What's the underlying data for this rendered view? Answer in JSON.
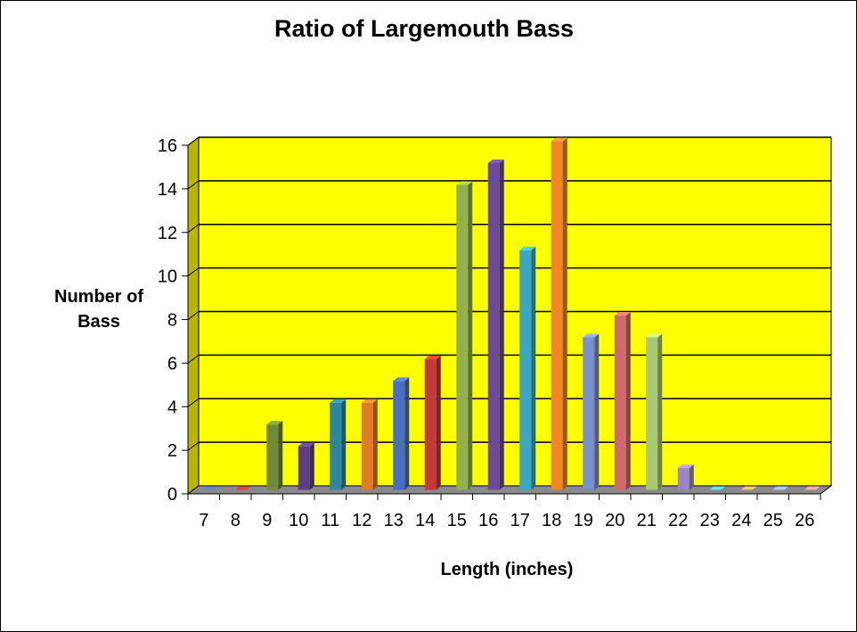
{
  "chart_data": {
    "type": "bar",
    "title": "Ratio of Largemouth Bass",
    "xlabel": "Length (inches)",
    "ylabel": "Number of Bass",
    "categories": [
      "7",
      "8",
      "9",
      "10",
      "11",
      "12",
      "13",
      "14",
      "15",
      "16",
      "17",
      "18",
      "19",
      "20",
      "21",
      "22",
      "23",
      "24",
      "25",
      "26"
    ],
    "values": [
      0,
      0,
      3,
      2,
      4,
      4,
      5,
      6,
      14,
      15,
      11,
      16,
      7,
      8,
      7,
      1,
      0,
      0,
      0,
      0
    ],
    "ylim": [
      0,
      16
    ],
    "yticks": [
      "0",
      "2",
      "4",
      "6",
      "8",
      "10",
      "12",
      "14",
      "16"
    ],
    "grid": true,
    "three_d": true,
    "legend": "none",
    "colors": {
      "plot_background": "#ffff00",
      "side_wall": "#b8b400",
      "floor": "#8a8a8a",
      "bars": [
        "#4a6fa5",
        "#b03a36",
        "#6f8a3a",
        "#5a3f87",
        "#2f86a0",
        "#e07b2a",
        "#4a6fbf",
        "#c0393b",
        "#93b04c",
        "#6b4a96",
        "#3aa8c4",
        "#f18628",
        "#7a8fd0",
        "#d06b6b",
        "#a8c874",
        "#9a86c4",
        "#4ab8d0",
        "#f2a060",
        "#8aa0d8",
        "#d88a8a"
      ]
    }
  }
}
